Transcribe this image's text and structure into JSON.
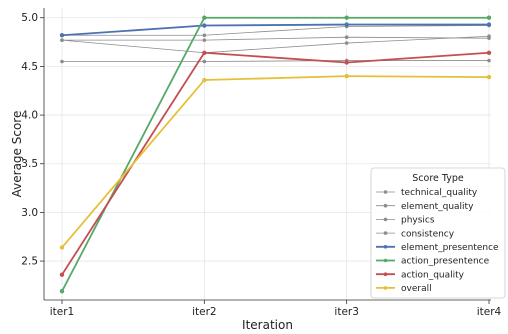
{
  "chart_data": {
    "type": "line",
    "title": "",
    "xlabel": "Iteration",
    "ylabel": "Average Score",
    "x": [
      "iter1",
      "iter2",
      "iter3",
      "iter4"
    ],
    "ylim": [
      2.1,
      5.1
    ],
    "yticks": [
      2.5,
      3.0,
      3.5,
      4.0,
      4.5,
      5.0
    ],
    "ytick_labels": [
      "2.5",
      "3.0",
      "3.5",
      "4.0",
      "4.5",
      "5.0"
    ],
    "grid": true,
    "legend": {
      "title": "Score Type",
      "placement": "lower-right"
    },
    "series": [
      {
        "name": "technical_quality",
        "color": "#8c8c8c",
        "emphasis": false,
        "values": [
          4.77,
          4.64,
          4.74,
          4.81
        ]
      },
      {
        "name": "element_quality",
        "color": "#8c8c8c",
        "emphasis": false,
        "values": [
          4.82,
          4.82,
          4.91,
          4.92
        ]
      },
      {
        "name": "physics",
        "color": "#8c8c8c",
        "emphasis": false,
        "values": [
          4.55,
          4.55,
          4.56,
          4.56
        ]
      },
      {
        "name": "consistency",
        "color": "#8c8c8c",
        "emphasis": false,
        "values": [
          4.77,
          4.77,
          4.8,
          4.79
        ]
      },
      {
        "name": "element_presentence",
        "color": "#4c72b0",
        "emphasis": true,
        "values": [
          4.82,
          4.92,
          4.93,
          4.93
        ]
      },
      {
        "name": "action_presentence",
        "color": "#55a868",
        "emphasis": true,
        "values": [
          2.19,
          5.0,
          5.0,
          5.0
        ]
      },
      {
        "name": "action_quality",
        "color": "#c44e52",
        "emphasis": true,
        "values": [
          2.36,
          4.64,
          4.54,
          4.64
        ]
      },
      {
        "name": "overall",
        "color": "#e6c03a",
        "emphasis": true,
        "values": [
          2.64,
          4.36,
          4.4,
          4.39
        ]
      }
    ]
  }
}
